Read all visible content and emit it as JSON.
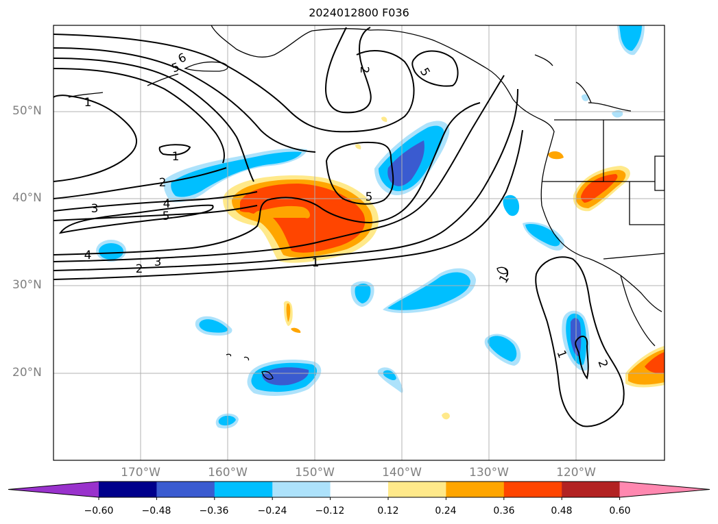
{
  "title": "2024012800 F036",
  "latitude_labels": [
    "50°N",
    "40°N",
    "30°N",
    "20°N"
  ],
  "longitude_labels": [
    "170°W",
    "160°W",
    "150°W",
    "140°W",
    "130°W",
    "120°W"
  ],
  "contour_labels": [
    "6",
    "5",
    "2",
    "5",
    "1",
    "1",
    "2",
    "4",
    "5",
    "3",
    "4",
    "3",
    "2",
    "1",
    "1",
    "1",
    "2",
    "5"
  ],
  "colorbar": {
    "tick_labels": [
      "−0.60",
      "−0.48",
      "−0.36",
      "−0.24",
      "−0.12",
      "0.12",
      "0.24",
      "0.36",
      "0.48",
      "0.60"
    ],
    "bins": [
      {
        "color": "#9932cc"
      },
      {
        "color": "#00008b"
      },
      {
        "color": "#3a5bd0"
      },
      {
        "color": "#00bfff"
      },
      {
        "color": "#ade2fb"
      },
      {
        "color": "#ffffff"
      },
      {
        "color": "#ffe98a"
      },
      {
        "color": "#ffa500"
      },
      {
        "color": "#ff4500"
      },
      {
        "color": "#b22222"
      },
      {
        "color": "#ff88b0"
      }
    ]
  }
}
